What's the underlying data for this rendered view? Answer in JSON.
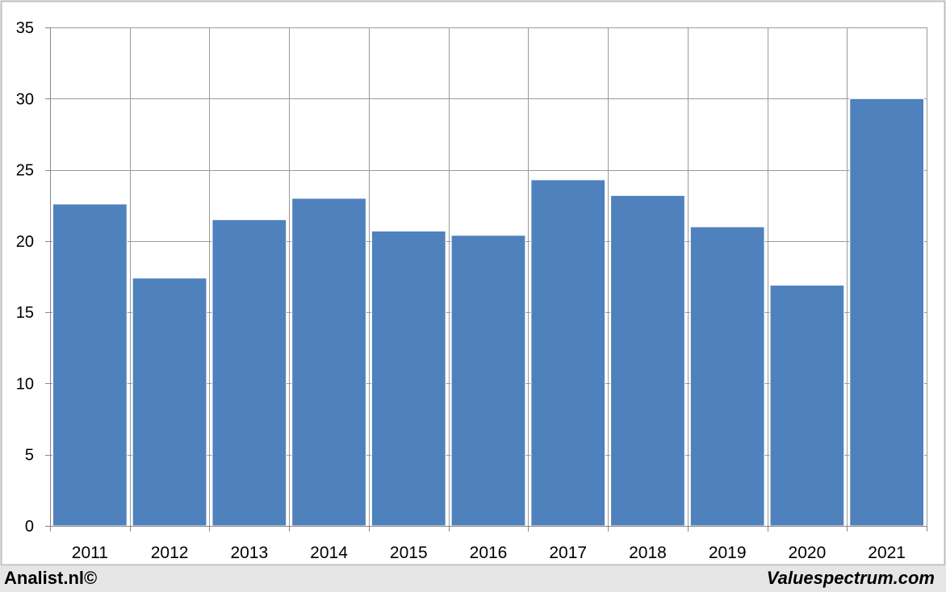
{
  "chart_data": {
    "type": "bar",
    "categories": [
      "2011",
      "2012",
      "2013",
      "2014",
      "2015",
      "2016",
      "2017",
      "2018",
      "2019",
      "2020",
      "2021"
    ],
    "values": [
      22.6,
      17.4,
      21.5,
      23.0,
      20.7,
      20.4,
      24.3,
      23.2,
      21.0,
      16.9,
      30.0
    ],
    "title": "",
    "xlabel": "",
    "ylabel": "",
    "ylim": [
      0,
      35
    ],
    "yticks": [
      0,
      5,
      10,
      15,
      20,
      25,
      30,
      35
    ],
    "grid": true,
    "bar_color": "#4f81bd"
  },
  "footer": {
    "left": "Analist.nl©",
    "right": "Valuespectrum.com"
  }
}
